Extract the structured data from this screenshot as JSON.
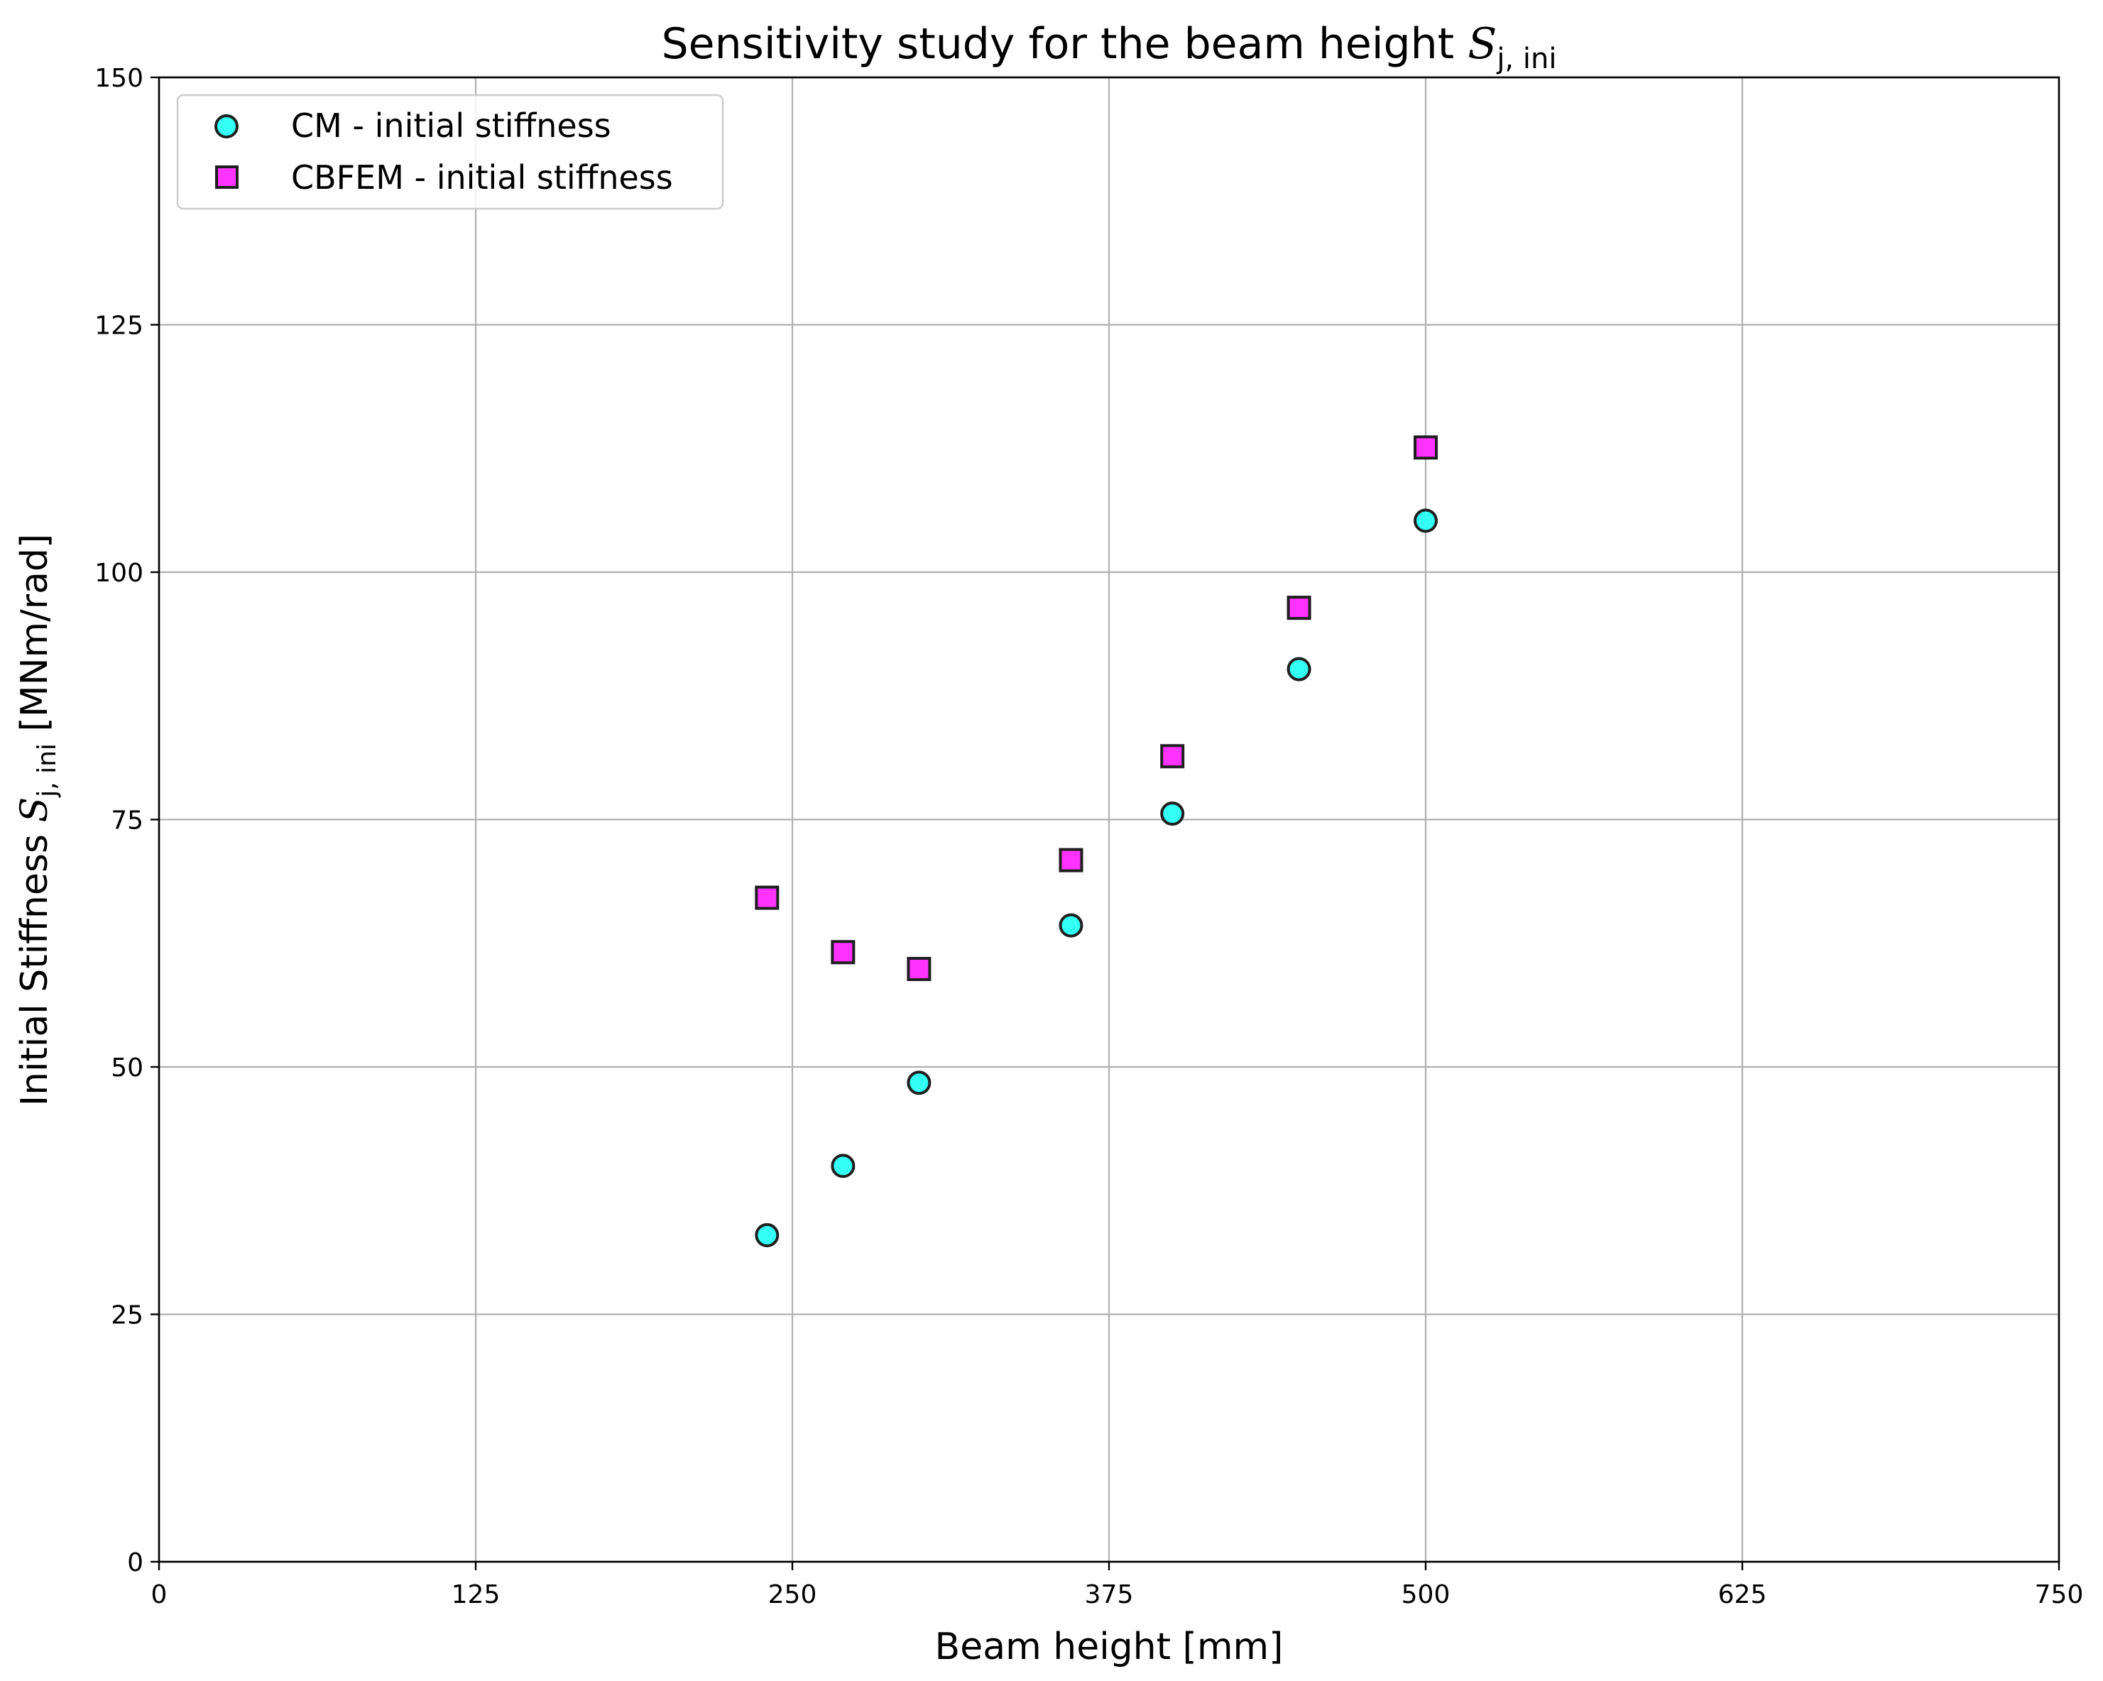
{
  "chart_data": {
    "type": "scatter",
    "title": "Sensitivity study for the beam height",
    "title_symbol": "S",
    "title_subscript": "j, ini",
    "xlabel": "Beam height [mm]",
    "ylabel_prefix": "Initial Stiffness",
    "ylabel_symbol": "S",
    "ylabel_subscript": "j, ini",
    "ylabel_suffix": "[MNm/rad]",
    "xlim": [
      0,
      750
    ],
    "ylim": [
      0,
      150
    ],
    "xticks": [
      0,
      125,
      250,
      375,
      500,
      625,
      750
    ],
    "yticks": [
      0,
      25,
      50,
      75,
      100,
      125,
      150
    ],
    "grid": true,
    "legend_position": "top-left",
    "series": [
      {
        "name": "CM - initial stiffness",
        "marker": "circle",
        "color": "#33fff5",
        "edge_color": "#1f1f1f",
        "x": [
          240,
          270,
          300,
          360,
          400,
          450,
          500
        ],
        "y": [
          33.0,
          40.0,
          48.4,
          64.3,
          75.6,
          90.2,
          105.2
        ]
      },
      {
        "name": "CBFEM - initial stiffness",
        "marker": "square",
        "color": "#ff33ff",
        "edge_color": "#1f1f1f",
        "x": [
          240,
          270,
          300,
          360,
          400,
          450,
          500
        ],
        "y": [
          67.1,
          61.6,
          59.9,
          70.9,
          81.4,
          96.4,
          112.6
        ]
      }
    ]
  }
}
